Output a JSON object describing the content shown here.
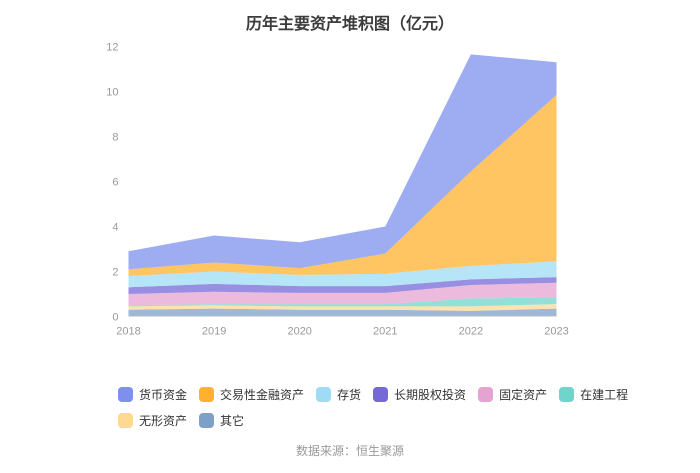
{
  "footer": {
    "source": "数据来源：恒生聚源"
  },
  "chart_data": {
    "type": "area",
    "stacked": true,
    "title": "历年主要资产堆积图（亿元）",
    "x": [
      "2018",
      "2019",
      "2020",
      "2021",
      "2022",
      "2023"
    ],
    "ylim": [
      0,
      12
    ],
    "yticks": [
      0,
      2,
      4,
      6,
      8,
      10,
      12
    ],
    "grid": false,
    "legend_position": "bottom",
    "area_opacity": 0.75,
    "series": [
      {
        "name": "其它",
        "color": "#7EA0C8",
        "values": [
          0.3,
          0.35,
          0.3,
          0.3,
          0.25,
          0.35
        ]
      },
      {
        "name": "无形资产",
        "color": "#FFD893",
        "values": [
          0.15,
          0.15,
          0.15,
          0.15,
          0.2,
          0.2
        ]
      },
      {
        "name": "在建工程",
        "color": "#6FD5CC",
        "values": [
          0.05,
          0.05,
          0.1,
          0.1,
          0.35,
          0.3
        ]
      },
      {
        "name": "固定资产",
        "color": "#E5A3D2",
        "values": [
          0.5,
          0.55,
          0.5,
          0.5,
          0.6,
          0.65
        ]
      },
      {
        "name": "长期股权投资",
        "color": "#7569DA",
        "values": [
          0.3,
          0.35,
          0.3,
          0.3,
          0.25,
          0.25
        ]
      },
      {
        "name": "存货",
        "color": "#9EDCF6",
        "values": [
          0.5,
          0.55,
          0.5,
          0.55,
          0.6,
          0.7
        ]
      },
      {
        "name": "交易性金融资产",
        "color": "#FFB12E",
        "values": [
          0.3,
          0.4,
          0.3,
          0.9,
          4.2,
          7.4
        ]
      },
      {
        "name": "货币资金",
        "color": "#7D90EE",
        "values": [
          0.8,
          1.2,
          1.15,
          1.2,
          5.2,
          1.45
        ]
      }
    ],
    "legend_order": [
      "货币资金",
      "交易性金融资产",
      "存货",
      "长期股权投资",
      "固定资产",
      "在建工程",
      "无形资产",
      "其它"
    ]
  }
}
